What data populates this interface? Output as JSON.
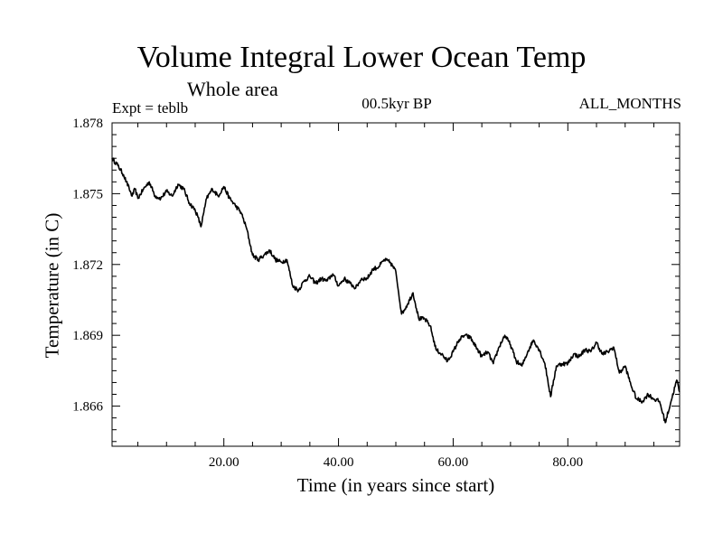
{
  "chart_data": {
    "type": "line",
    "title": "Volume Integral Lower Ocean Temp",
    "subtitle": "Whole area",
    "annotations": {
      "experiment": "Expt = teblb",
      "period": "00.5kyr BP",
      "months": "ALL_MONTHS"
    },
    "xlabel": "Time (in years since start)",
    "ylabel": "Temperature (in C)",
    "xlim": [
      0.5,
      99.5
    ],
    "ylim": [
      1.8643,
      1.878
    ],
    "x_ticks": [
      20,
      40,
      60,
      80
    ],
    "x_tick_labels": [
      "20.00",
      "40.00",
      "60.00",
      "80.00"
    ],
    "y_ticks": [
      1.866,
      1.869,
      1.872,
      1.875,
      1.878
    ],
    "y_tick_labels": [
      "1.866",
      "1.869",
      "1.872",
      "1.875",
      "1.878"
    ],
    "series": [
      {
        "name": "Volume Integral Lower Ocean Temp",
        "x": [
          0.5,
          1.5,
          2.5,
          3.0,
          3.5,
          4.0,
          4.5,
          5.0,
          6.0,
          7.0,
          8.0,
          9.0,
          10.0,
          11.0,
          12.0,
          13.0,
          14.0,
          15.0,
          15.5,
          16.0,
          16.5,
          17.0,
          18.0,
          19.0,
          20.0,
          21.0,
          22.0,
          23.0,
          24.0,
          25.0,
          26.0,
          27.0,
          28.0,
          29.0,
          30.0,
          31.0,
          32.0,
          33.0,
          34.0,
          35.0,
          36.0,
          37.0,
          38.0,
          39.0,
          40.0,
          41.0,
          42.0,
          43.0,
          44.0,
          45.0,
          46.0,
          47.0,
          48.0,
          49.0,
          50.0,
          51.0,
          52.0,
          53.0,
          54.0,
          55.0,
          56.0,
          57.0,
          58.0,
          59.0,
          60.0,
          61.0,
          62.0,
          63.0,
          64.0,
          65.0,
          66.0,
          67.0,
          68.0,
          69.0,
          70.0,
          71.0,
          72.0,
          73.0,
          74.0,
          75.0,
          76.0,
          77.0,
          78.0,
          79.0,
          80.0,
          81.0,
          82.0,
          83.0,
          84.0,
          85.0,
          86.0,
          87.0,
          88.0,
          89.0,
          90.0,
          91.0,
          92.0,
          93.0,
          94.0,
          95.0,
          96.0,
          97.0,
          98.0,
          99.0,
          99.5
        ],
        "values": [
          1.8765,
          1.8762,
          1.8758,
          1.8755,
          1.8752,
          1.8749,
          1.8752,
          1.8748,
          1.8752,
          1.8755,
          1.8749,
          1.8748,
          1.8751,
          1.8749,
          1.8754,
          1.8752,
          1.8746,
          1.8743,
          1.874,
          1.8736,
          1.8742,
          1.8748,
          1.8752,
          1.8749,
          1.8753,
          1.8748,
          1.8745,
          1.8742,
          1.8735,
          1.8724,
          1.8722,
          1.8724,
          1.8726,
          1.8722,
          1.8721,
          1.8722,
          1.8711,
          1.8709,
          1.8713,
          1.8715,
          1.8712,
          1.8714,
          1.8713,
          1.8716,
          1.8711,
          1.8714,
          1.8712,
          1.871,
          1.8714,
          1.8714,
          1.8718,
          1.8719,
          1.8722,
          1.8721,
          1.8717,
          1.8699,
          1.8703,
          1.8708,
          1.8697,
          1.8697,
          1.8694,
          1.8684,
          1.8682,
          1.8679,
          1.8683,
          1.8688,
          1.869,
          1.8689,
          1.8685,
          1.8681,
          1.8683,
          1.8678,
          1.8685,
          1.869,
          1.8686,
          1.8679,
          1.8677,
          1.8683,
          1.8688,
          1.8684,
          1.8678,
          1.8664,
          1.8677,
          1.8678,
          1.8678,
          1.8682,
          1.8681,
          1.8684,
          1.8683,
          1.8687,
          1.8682,
          1.8683,
          1.8685,
          1.8674,
          1.8677,
          1.8669,
          1.8663,
          1.8662,
          1.8665,
          1.8663,
          1.8662,
          1.8653,
          1.8662,
          1.8671,
          1.8666
        ]
      }
    ]
  }
}
